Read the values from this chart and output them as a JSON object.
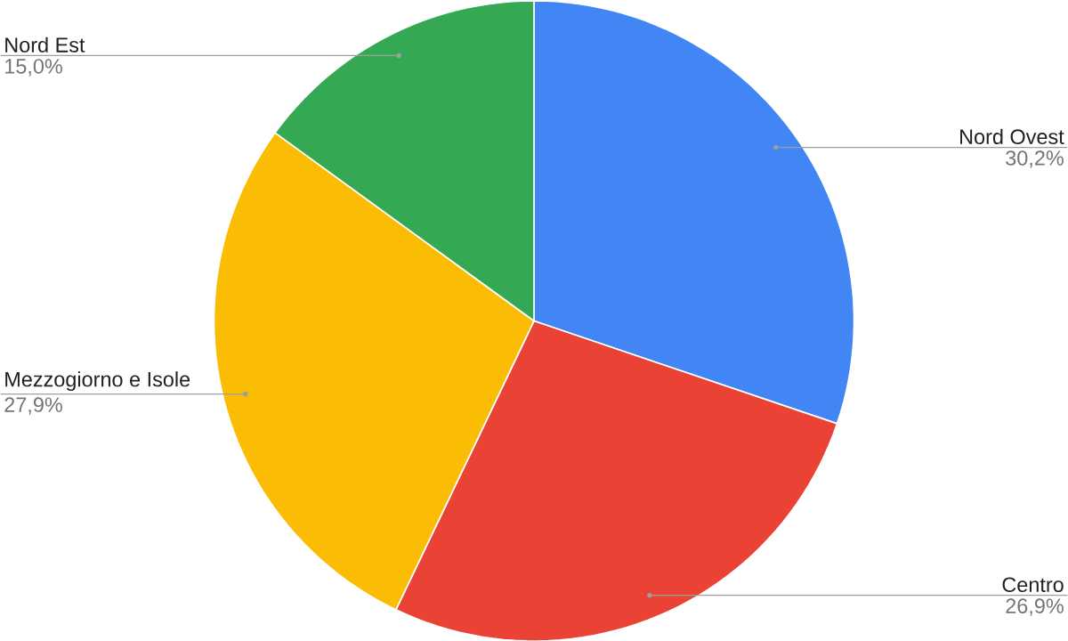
{
  "chart_data": {
    "type": "pie",
    "categories": [
      "Nord Ovest",
      "Centro",
      "Mezzogiorno e Isole",
      "Nord Est"
    ],
    "values": [
      30.2,
      26.9,
      27.9,
      15.0
    ],
    "value_labels": [
      "30,2%",
      "26,9%",
      "27,9%",
      "15,0%"
    ],
    "colors": [
      "#4285f4",
      "#ea4335",
      "#fbbc04",
      "#34a853"
    ],
    "legend": false
  }
}
